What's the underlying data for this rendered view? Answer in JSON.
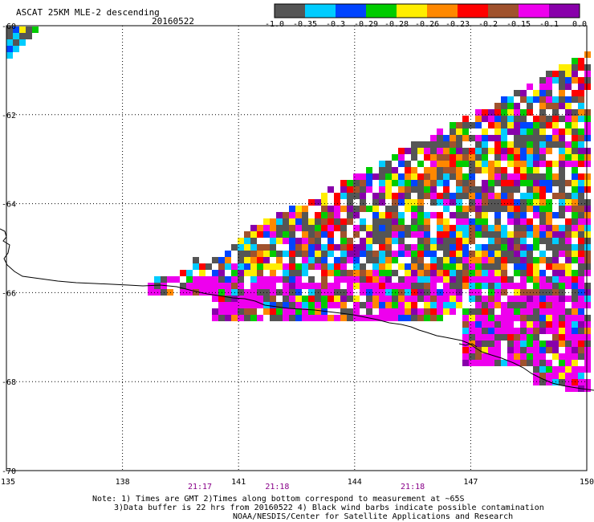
{
  "header": {
    "title": "ASCAT 25KM MLE-2 descending",
    "date": "20160522"
  },
  "colorbar": {
    "labels": [
      "-1.0",
      "-0.35",
      "-0.3",
      "-0.29",
      "-0.28",
      "-0.26",
      "-0.23",
      "-0.2",
      "-0.15",
      "-0.1",
      "0.0"
    ],
    "colors": [
      "#555555",
      "#00ccff",
      "#0044ff",
      "#00cc00",
      "#ffee00",
      "#ff8800",
      "#ff0000",
      "#a0522d",
      "#ee00ee",
      "#8800aa"
    ]
  },
  "axes": {
    "lat_labels": [
      "-60",
      "-62",
      "-64",
      "-66",
      "-68",
      "-70"
    ],
    "lon_labels": [
      "135",
      "138",
      "141",
      "144",
      "147",
      "150"
    ],
    "lat_range": [
      -70,
      -60
    ],
    "lon_range": [
      135,
      150
    ],
    "grid": "dotted"
  },
  "times": [
    {
      "lon": 140,
      "label": "21:17"
    },
    {
      "lon": 142,
      "label": "21:18"
    },
    {
      "lon": 145.5,
      "label": "21:18"
    }
  ],
  "notes": {
    "line1": "Note: 1) Times are GMT 2)Times along bottom correspond to measurement at ~65S",
    "line2": "3)Data buffer is 22 hrs from 20160522 4) Black wind barbs indicate possible contamination",
    "line3": "NOAA/NESDIS/Center for Satellite Applications and Research"
  },
  "legend_colors": {
    "coast": "#000000",
    "grid": "#000000",
    "time_label": "#880088"
  }
}
